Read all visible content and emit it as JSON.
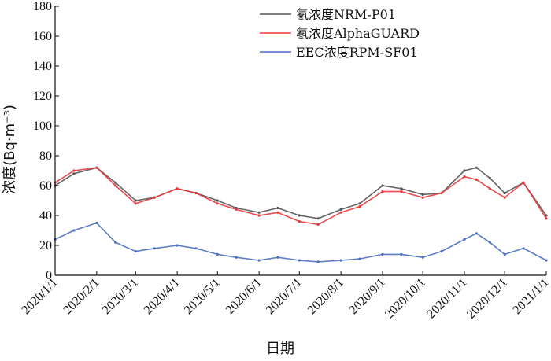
{
  "chart_data": {
    "type": "line",
    "xlabel": "日期",
    "ylabel": "浓度(Bq·m⁻³)",
    "ylim": [
      0,
      180
    ],
    "yticks": [
      0,
      20,
      40,
      60,
      80,
      100,
      120,
      140,
      160,
      180
    ],
    "x_range": [
      "2020-01-01",
      "2021-01-01"
    ],
    "xticks": [
      "2020/1/1",
      "2020/2/1",
      "2020/3/1",
      "2020/4/1",
      "2020/5/1",
      "2020/6/1",
      "2020/7/1",
      "2020/8/1",
      "2020/9/1",
      "2020/10/1",
      "2020/11/1",
      "2020/12/1",
      "2021/1/1"
    ],
    "grid": false,
    "legend_position": "top-right",
    "series": [
      {
        "name": "氡浓度NRM-P01",
        "color": "#555555",
        "x": [
          "2020-01-01",
          "2020-01-15",
          "2020-02-01",
          "2020-02-15",
          "2020-03-01",
          "2020-03-15",
          "2020-04-01",
          "2020-04-15",
          "2020-05-01",
          "2020-05-15",
          "2020-06-01",
          "2020-06-15",
          "2020-07-01",
          "2020-07-15",
          "2020-08-01",
          "2020-08-15",
          "2020-09-01",
          "2020-09-15",
          "2020-10-01",
          "2020-10-15",
          "2020-11-01",
          "2020-11-10",
          "2020-11-20",
          "2020-12-01",
          "2020-12-15",
          "2021-01-01"
        ],
        "y": [
          60,
          68,
          72,
          62,
          50,
          52,
          58,
          55,
          50,
          45,
          42,
          45,
          40,
          38,
          44,
          48,
          60,
          58,
          54,
          55,
          70,
          72,
          65,
          55,
          62,
          40
        ]
      },
      {
        "name": "氡浓度AlphaGUARD",
        "color": "#e8383d",
        "x": [
          "2020-01-01",
          "2020-01-15",
          "2020-02-01",
          "2020-02-15",
          "2020-03-01",
          "2020-03-15",
          "2020-04-01",
          "2020-04-15",
          "2020-05-01",
          "2020-05-15",
          "2020-06-01",
          "2020-06-15",
          "2020-07-01",
          "2020-07-15",
          "2020-08-01",
          "2020-08-15",
          "2020-09-01",
          "2020-09-15",
          "2020-10-01",
          "2020-10-15",
          "2020-11-01",
          "2020-11-10",
          "2020-11-20",
          "2020-12-01",
          "2020-12-15",
          "2021-01-01"
        ],
        "y": [
          62,
          70,
          72,
          60,
          48,
          52,
          58,
          55,
          48,
          44,
          40,
          42,
          36,
          34,
          42,
          46,
          56,
          56,
          52,
          55,
          66,
          64,
          58,
          52,
          62,
          38
        ]
      },
      {
        "name": "EEC浓度RPM-SF01",
        "color": "#4a6fc0",
        "x": [
          "2020-01-01",
          "2020-01-15",
          "2020-02-01",
          "2020-02-15",
          "2020-03-01",
          "2020-03-15",
          "2020-04-01",
          "2020-04-15",
          "2020-05-01",
          "2020-05-15",
          "2020-06-01",
          "2020-06-15",
          "2020-07-01",
          "2020-07-15",
          "2020-08-01",
          "2020-08-15",
          "2020-09-01",
          "2020-09-15",
          "2020-10-01",
          "2020-10-15",
          "2020-11-01",
          "2020-11-10",
          "2020-11-20",
          "2020-12-01",
          "2020-12-15",
          "2021-01-01"
        ],
        "y": [
          24,
          30,
          35,
          22,
          16,
          18,
          20,
          18,
          14,
          12,
          10,
          12,
          10,
          9,
          10,
          11,
          14,
          14,
          12,
          16,
          24,
          28,
          22,
          14,
          18,
          10
        ]
      }
    ]
  }
}
